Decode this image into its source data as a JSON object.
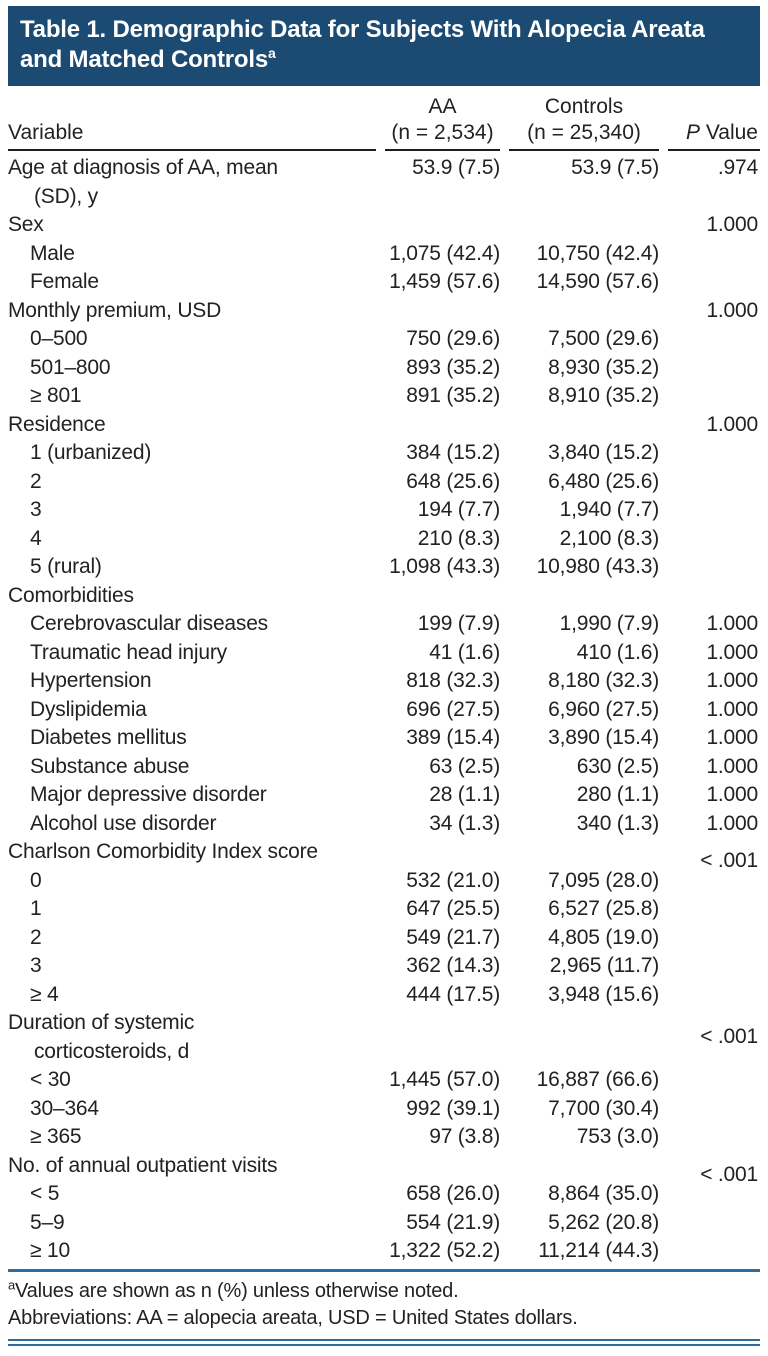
{
  "banner": {
    "title": "Table 1. Demographic Data for Subjects With Alopecia Areata and Matched Controls",
    "superscript": "a"
  },
  "colors": {
    "banner_background": "#1b4b72",
    "banner_text": "#ffffff",
    "blue_rule": "#2c6d9e",
    "header_rule": "#1c1c1c",
    "body_text": "#222222"
  },
  "table": {
    "columns": {
      "variable_label": "Variable",
      "aa_line1": "AA",
      "aa_line2": "(n = 2,534)",
      "controls_line1": "Controls",
      "controls_line2": "(n = 25,340)",
      "p_italic": "P",
      "p_rest": " Value"
    },
    "rows": [
      {
        "label": "Age at diagnosis of AA, mean",
        "label2": "(SD), y",
        "aa": "53.9 (7.5)",
        "controls": "53.9 (7.5)",
        "p": ".974"
      },
      {
        "label": "Sex",
        "aa": "",
        "controls": "",
        "p": "1.000"
      },
      {
        "label": "Male",
        "indent": true,
        "aa": "1,075 (42.4)",
        "controls": "10,750 (42.4)",
        "p": ""
      },
      {
        "label": "Female",
        "indent": true,
        "aa": "1,459 (57.6)",
        "controls": "14,590 (57.6)",
        "p": ""
      },
      {
        "label": "Monthly premium, USD",
        "aa": "",
        "controls": "",
        "p": "1.000"
      },
      {
        "label": "0–500",
        "indent": true,
        "aa": "750 (29.6)",
        "controls": "7,500 (29.6)",
        "p": ""
      },
      {
        "label": "501–800",
        "indent": true,
        "aa": "893 (35.2)",
        "controls": "8,930 (35.2)",
        "p": ""
      },
      {
        "label": "≥ 801",
        "indent": true,
        "aa": "891 (35.2)",
        "controls": "8,910 (35.2)",
        "p": ""
      },
      {
        "label": "Residence",
        "aa": "",
        "controls": "",
        "p": "1.000"
      },
      {
        "label": "1 (urbanized)",
        "indent": true,
        "aa": "384 (15.2)",
        "controls": "3,840 (15.2)",
        "p": ""
      },
      {
        "label": "2",
        "indent": true,
        "aa": "648 (25.6)",
        "controls": "6,480 (25.6)",
        "p": ""
      },
      {
        "label": "3",
        "indent": true,
        "aa": "194 (7.7)",
        "controls": "1,940 (7.7)",
        "p": ""
      },
      {
        "label": "4",
        "indent": true,
        "aa": "210 (8.3)",
        "controls": "2,100 (8.3)",
        "p": ""
      },
      {
        "label": "5 (rural)",
        "indent": true,
        "aa": "1,098 (43.3)",
        "controls": "10,980 (43.3)",
        "p": ""
      },
      {
        "label": "Comorbidities",
        "aa": "",
        "controls": "",
        "p": ""
      },
      {
        "label": "Cerebrovascular diseases",
        "indent": true,
        "aa": "199 (7.9)",
        "controls": "1,990 (7.9)",
        "p": "1.000"
      },
      {
        "label": "Traumatic head injury",
        "indent": true,
        "aa": "41 (1.6)",
        "controls": "410 (1.6)",
        "p": "1.000"
      },
      {
        "label": "Hypertension",
        "indent": true,
        "aa": "818 (32.3)",
        "controls": "8,180 (32.3)",
        "p": "1.000"
      },
      {
        "label": "Dyslipidemia",
        "indent": true,
        "aa": "696 (27.5)",
        "controls": "6,960 (27.5)",
        "p": "1.000"
      },
      {
        "label": "Diabetes mellitus",
        "indent": true,
        "aa": "389 (15.4)",
        "controls": "3,890 (15.4)",
        "p": "1.000"
      },
      {
        "label": "Substance abuse",
        "indent": true,
        "aa": "63 (2.5)",
        "controls": "630 (2.5)",
        "p": "1.000"
      },
      {
        "label": "Major depressive disorder",
        "indent": true,
        "aa": "28 (1.1)",
        "controls": "280 (1.1)",
        "p": "1.000"
      },
      {
        "label": "Alcohol use disorder",
        "indent": true,
        "aa": "34 (1.3)",
        "controls": "340 (1.3)",
        "p": "1.000"
      },
      {
        "label": "Charlson Comorbidity Index score",
        "aa": "",
        "controls": "",
        "p": "< .001",
        "p_pos": "low"
      },
      {
        "label": "0",
        "indent": true,
        "aa": "532 (21.0)",
        "controls": "7,095 (28.0)",
        "p": ""
      },
      {
        "label": "1",
        "indent": true,
        "aa": "647 (25.5)",
        "controls": "6,527 (25.8)",
        "p": ""
      },
      {
        "label": "2",
        "indent": true,
        "aa": "549 (21.7)",
        "controls": "4,805 (19.0)",
        "p": ""
      },
      {
        "label": "3",
        "indent": true,
        "aa": "362 (14.3)",
        "controls": "2,965 (11.7)",
        "p": ""
      },
      {
        "label": "≥ 4",
        "indent": true,
        "aa": "444 (17.5)",
        "controls": "3,948 (15.6)",
        "p": ""
      },
      {
        "label": "Duration of systemic",
        "label2": "corticosteroids, d",
        "aa": "",
        "controls": "",
        "p": "< .001",
        "p_pos": "mid"
      },
      {
        "label": "< 30",
        "indent": true,
        "aa": "1,445 (57.0)",
        "controls": "16,887 (66.6)",
        "p": ""
      },
      {
        "label": "30–364",
        "indent": true,
        "aa": "992 (39.1)",
        "controls": "7,700 (30.4)",
        "p": ""
      },
      {
        "label": "≥ 365",
        "indent": true,
        "aa": "97 (3.8)",
        "controls": "753 (3.0)",
        "p": ""
      },
      {
        "label": "No. of annual outpatient visits",
        "aa": "",
        "controls": "",
        "p": "< .001",
        "p_pos": "low"
      },
      {
        "label": "< 5",
        "indent": true,
        "aa": "658 (26.0)",
        "controls": "8,864 (35.0)",
        "p": ""
      },
      {
        "label": "5–9",
        "indent": true,
        "aa": "554 (21.9)",
        "controls": "5,262 (20.8)",
        "p": ""
      },
      {
        "label": "≥ 10",
        "indent": true,
        "aa": "1,322 (52.2)",
        "controls": "11,214 (44.3)",
        "p": ""
      }
    ]
  },
  "footnotes": {
    "marker": "a",
    "note_text": "Values are shown as n (%) unless otherwise noted.",
    "abbreviations_text": "Abbreviations: AA = alopecia areata, USD = United States dollars."
  }
}
